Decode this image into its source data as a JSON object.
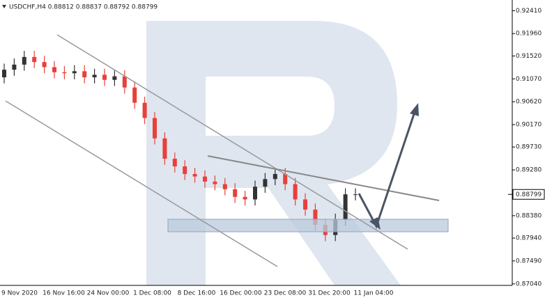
{
  "chart_data": {
    "type": "candlestick",
    "title": "USDCHF,H4 0.88812 0.88837 0.88792 0.88799",
    "categories": [
      "9 Nov 2020",
      "16 Nov 16:00",
      "24 Nov 00:00",
      "1 Dec 08:00",
      "8 Dec 16:00",
      "16 Dec 00:00",
      "23 Dec 08:00",
      "31 Dec 20:00",
      "11 Jan 04:00"
    ],
    "open": [
      0.911,
      0.9125,
      0.9135,
      0.915,
      0.914,
      0.913,
      0.912,
      0.9118,
      0.9122,
      0.911,
      0.9115,
      0.9105,
      0.9112,
      0.909,
      0.906,
      0.903,
      0.899,
      0.895,
      0.8935,
      0.892,
      0.8915,
      0.8905,
      0.89,
      0.889,
      0.8875,
      0.887,
      0.8895,
      0.891,
      0.892,
      0.89,
      0.887,
      0.885,
      0.882,
      0.88,
      0.883,
      0.888
    ],
    "high": [
      0.9137,
      0.9147,
      0.9162,
      0.9162,
      0.9152,
      0.9142,
      0.9132,
      0.9134,
      0.9134,
      0.9127,
      0.9127,
      0.9124,
      0.9124,
      0.9102,
      0.9072,
      0.9042,
      0.9002,
      0.8962,
      0.8947,
      0.8932,
      0.8927,
      0.8917,
      0.8912,
      0.8902,
      0.8887,
      0.8907,
      0.8922,
      0.8932,
      0.8932,
      0.8912,
      0.8882,
      0.8862,
      0.8832,
      0.8842,
      0.8892,
      0.8892
    ],
    "low": [
      0.9098,
      0.9113,
      0.9123,
      0.9128,
      0.9118,
      0.9108,
      0.9106,
      0.9106,
      0.9098,
      0.9098,
      0.9093,
      0.9093,
      0.9078,
      0.9048,
      0.9018,
      0.8978,
      0.8938,
      0.8923,
      0.8908,
      0.8903,
      0.8893,
      0.8888,
      0.8878,
      0.8863,
      0.8858,
      0.8858,
      0.8883,
      0.8898,
      0.8888,
      0.8858,
      0.8838,
      0.8808,
      0.8788,
      0.8788,
      0.8818,
      0.8868
    ],
    "close": [
      0.9125,
      0.9135,
      0.915,
      0.914,
      0.913,
      0.912,
      0.9118,
      0.9122,
      0.911,
      0.9115,
      0.9105,
      0.9112,
      0.909,
      0.906,
      0.903,
      0.899,
      0.895,
      0.8935,
      0.892,
      0.8915,
      0.8905,
      0.89,
      0.889,
      0.8875,
      0.887,
      0.8895,
      0.891,
      0.892,
      0.89,
      0.887,
      0.885,
      0.882,
      0.88,
      0.883,
      0.888,
      0.888
    ],
    "up_color": "#333333",
    "down_color": "#e8403a",
    "ylim": [
      0.8701,
      0.9262
    ],
    "yticks": [
      {
        "value": 0.9241,
        "label": "0.92410"
      },
      {
        "value": 0.9196,
        "label": "0.91960"
      },
      {
        "value": 0.9152,
        "label": "0.91520"
      },
      {
        "value": 0.9107,
        "label": "0.91070"
      },
      {
        "value": 0.9062,
        "label": "0.90620"
      },
      {
        "value": 0.9017,
        "label": "0.90170"
      },
      {
        "value": 0.8973,
        "label": "0.89730"
      },
      {
        "value": 0.8928,
        "label": "0.89280"
      },
      {
        "value": 0.8838,
        "label": "0.88380"
      },
      {
        "value": 0.8794,
        "label": "0.87940"
      },
      {
        "value": 0.8749,
        "label": "0.87490"
      },
      {
        "value": 0.8704,
        "label": "0.87040"
      }
    ],
    "last_price": 0.88799
  }
}
